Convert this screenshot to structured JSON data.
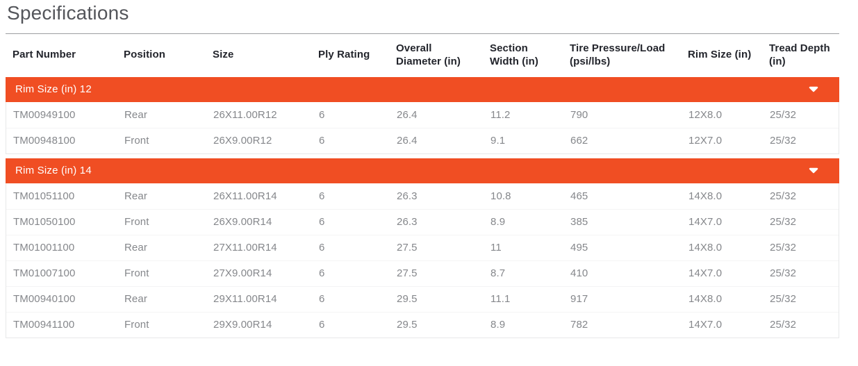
{
  "page": {
    "title": "Specifications"
  },
  "colors": {
    "accent_orange": "#F04E23",
    "header_text": "#23252C",
    "body_text": "#85878B",
    "title_text": "#54565B",
    "top_rule": "#9B9DA0",
    "row_border": "#E7E8E9"
  },
  "icons": {
    "group_caret": "caret-down-icon"
  },
  "table": {
    "columns": [
      "Part Number",
      "Position",
      "Size",
      "Ply Rating",
      "Overall Diameter (in)",
      "Section Width (in)",
      "Tire Pressure/Load (psi/lbs)",
      "Rim Size (in)",
      "Tread Depth (in)"
    ],
    "groups": [
      {
        "label": "Rim Size (in) 12",
        "expanded": true,
        "rows": [
          [
            "TM00949100",
            "Rear",
            "26X11.00R12",
            "6",
            "26.4",
            "11.2",
            "790",
            "12X8.0",
            "25/32"
          ],
          [
            "TM00948100",
            "Front",
            "26X9.00R12",
            "6",
            "26.4",
            "9.1",
            "662",
            "12X7.0",
            "25/32"
          ]
        ]
      },
      {
        "label": "Rim Size (in) 14",
        "expanded": true,
        "rows": [
          [
            "TM01051100",
            "Rear",
            "26X11.00R14",
            "6",
            "26.3",
            "10.8",
            "465",
            "14X8.0",
            "25/32"
          ],
          [
            "TM01050100",
            "Front",
            "26X9.00R14",
            "6",
            "26.3",
            "8.9",
            "385",
            "14X7.0",
            "25/32"
          ],
          [
            "TM01001100",
            "Rear",
            "27X11.00R14",
            "6",
            "27.5",
            "11",
            "495",
            "14X8.0",
            "25/32"
          ],
          [
            "TM01007100",
            "Front",
            "27X9.00R14",
            "6",
            "27.5",
            "8.7",
            "410",
            "14X7.0",
            "25/32"
          ],
          [
            "TM00940100",
            "Rear",
            "29X11.00R14",
            "6",
            "29.5",
            "11.1",
            "917",
            "14X8.0",
            "25/32"
          ],
          [
            "TM00941100",
            "Front",
            "29X9.00R14",
            "6",
            "29.5",
            "8.9",
            "782",
            "14X7.0",
            "25/32"
          ]
        ]
      }
    ]
  }
}
